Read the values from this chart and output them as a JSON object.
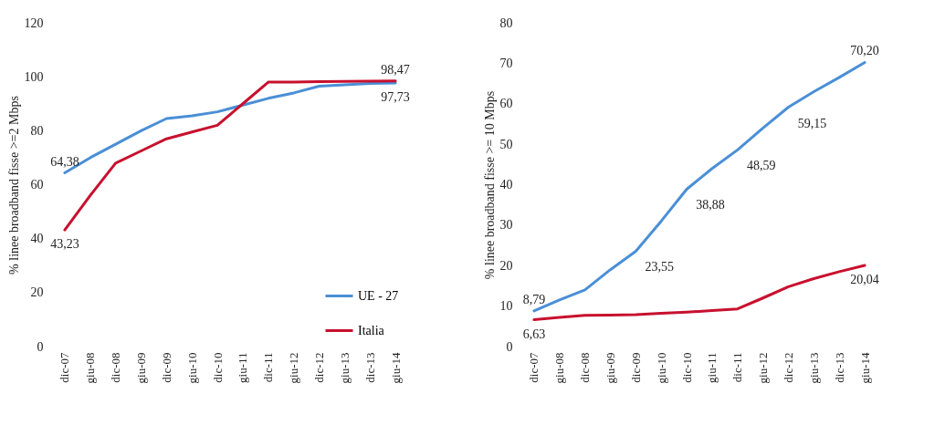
{
  "chart_data": [
    {
      "type": "line",
      "ylabel": "% linee broadband fisse >=2 Mbps",
      "categories": [
        "dic-07",
        "giu-08",
        "dic-08",
        "giu-09",
        "dic-09",
        "giu-10",
        "dic-10",
        "giu-11",
        "dic-11",
        "giu-12",
        "dic-12",
        "giu-13",
        "dic-13",
        "giu-14"
      ],
      "series": [
        {
          "name": "UE - 27",
          "color": "#4a8fd6",
          "values": [
            64.38,
            70,
            75,
            80,
            84.5,
            85.5,
            87,
            89.5,
            92,
            94,
            96.5,
            97,
            97.5,
            97.73
          ],
          "value_labels": [
            "64,38",
            null,
            null,
            null,
            null,
            null,
            null,
            null,
            null,
            null,
            null,
            null,
            null,
            "97,73"
          ]
        },
        {
          "name": "Italia",
          "color": "#c8102e",
          "values": [
            43.23,
            56,
            68,
            72.5,
            77,
            79.5,
            82,
            90,
            98,
            98,
            98.2,
            98.3,
            98.4,
            98.47
          ],
          "value_labels": [
            "43,23",
            null,
            null,
            null,
            null,
            null,
            null,
            null,
            null,
            null,
            null,
            null,
            null,
            "98,47"
          ]
        }
      ],
      "ylim": [
        0,
        120
      ],
      "yticks": [
        0,
        20,
        40,
        60,
        80,
        100,
        120
      ],
      "grid": false,
      "legend": "bottom right"
    },
    {
      "type": "line",
      "ylabel": "% linee broadband fisse >= 10 Mbps",
      "categories": [
        "dic-07",
        "giu-08",
        "dic-08",
        "giu-09",
        "dic-09",
        "giu-10",
        "dic-10",
        "giu-11",
        "dic-11",
        "giu-12",
        "dic-12",
        "giu-13",
        "dic-13",
        "giu-14"
      ],
      "series": [
        {
          "color": "#4a8fd6",
          "values": [
            8.79,
            11.5,
            14,
            19,
            23.55,
            31,
            38.88,
            44,
            48.59,
            54,
            59.15,
            63,
            66.5,
            70.2
          ],
          "value_labels": [
            "8,79",
            null,
            null,
            null,
            "23,55",
            null,
            "38,88",
            null,
            "48,59",
            null,
            "59,15",
            null,
            null,
            "70,20"
          ]
        },
        {
          "color": "#c8102e",
          "values": [
            6.63,
            7.2,
            7.7,
            7.8,
            7.9,
            8.2,
            8.5,
            8.9,
            9.3,
            12,
            14.8,
            16.8,
            18.5,
            20.04
          ],
          "value_labels": [
            "6,63",
            null,
            null,
            null,
            null,
            null,
            null,
            null,
            null,
            null,
            null,
            null,
            null,
            "20,04"
          ]
        }
      ],
      "ylim": [
        0,
        80
      ],
      "yticks": [
        0,
        10,
        20,
        30,
        40,
        50,
        60,
        70,
        80
      ],
      "grid": false,
      "legend": false
    }
  ]
}
